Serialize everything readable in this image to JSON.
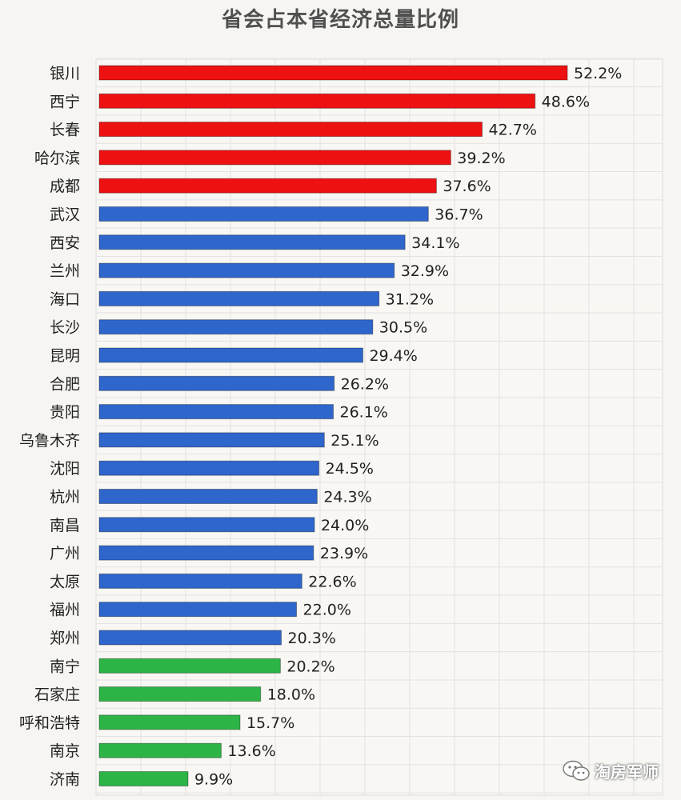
{
  "watermark": {
    "text": "淘房军师",
    "icon": "wechat-icon"
  },
  "colors": {
    "red": "#ee1111",
    "blue": "#2f66cc",
    "green": "#2db446"
  },
  "chart_data": {
    "type": "bar",
    "orientation": "horizontal",
    "title": "省会占本省经济总量比例",
    "xlim": [
      0,
      55
    ],
    "grid": true,
    "categories": [
      "银川",
      "西宁",
      "长春",
      "哈尔滨",
      "成都",
      "武汉",
      "西安",
      "兰州",
      "海口",
      "长沙",
      "昆明",
      "合肥",
      "贵阳",
      "乌鲁木齐",
      "沈阳",
      "杭州",
      "南昌",
      "广州",
      "太原",
      "福州",
      "郑州",
      "南宁",
      "石家庄",
      "呼和浩特",
      "南京",
      "济南"
    ],
    "values": [
      52.2,
      48.6,
      42.7,
      39.2,
      37.6,
      36.7,
      34.1,
      32.9,
      31.2,
      30.5,
      29.4,
      26.2,
      26.1,
      25.1,
      24.5,
      24.3,
      24.0,
      23.9,
      22.6,
      22.0,
      20.3,
      20.2,
      18.0,
      15.7,
      13.6,
      9.9
    ],
    "value_labels": [
      "52.2%",
      "48.6%",
      "42.7%",
      "39.2%",
      "37.6%",
      "36.7%",
      "34.1%",
      "32.9%",
      "31.2%",
      "30.5%",
      "29.4%",
      "26.2%",
      "26.1%",
      "25.1%",
      "24.5%",
      "24.3%",
      "24.0%",
      "23.9%",
      "22.6%",
      "22.0%",
      "20.3%",
      "20.2%",
      "18.0%",
      "15.7%",
      "13.6%",
      "9.9%"
    ],
    "bar_colors": [
      "red",
      "red",
      "red",
      "red",
      "red",
      "blue",
      "blue",
      "blue",
      "blue",
      "blue",
      "blue",
      "blue",
      "blue",
      "blue",
      "blue",
      "blue",
      "blue",
      "blue",
      "blue",
      "blue",
      "blue",
      "green",
      "green",
      "green",
      "green",
      "green"
    ]
  }
}
